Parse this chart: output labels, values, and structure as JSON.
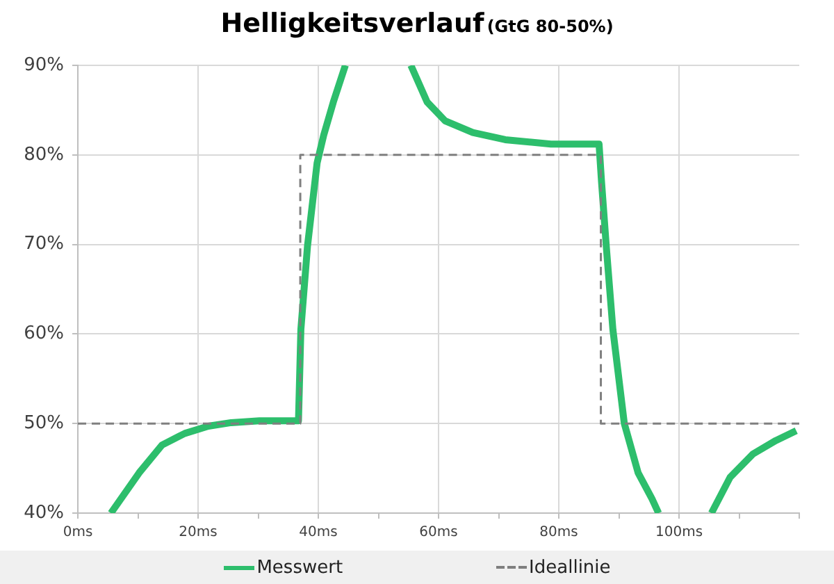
{
  "chart_data": {
    "type": "line",
    "title": "Helligkeitsverlauf",
    "subtitle": "(GtG 80-50%)",
    "series": [
      {
        "name": "Messwert",
        "color": "#2dbe6c",
        "line_style": "solid",
        "x": [
          5.5,
          10.2,
          14,
          17.8,
          21.7,
          25.5,
          30.2,
          36.7,
          37.1,
          38.2,
          39.8,
          40.9,
          42.5,
          44.5,
          50,
          55.4,
          58.1,
          61.1,
          65.7,
          71.1,
          78.7,
          86.7,
          87.1,
          87.9,
          89.0,
          90.9,
          93.2,
          95.5,
          96.6,
          101,
          105.4,
          108.5,
          112.3,
          116.1,
          119.5
        ],
        "values": [
          40,
          44.5,
          47.6,
          48.9,
          49.7,
          50.1,
          50.3,
          50.3,
          60.5,
          69.8,
          79.1,
          82.2,
          85.9,
          90,
          null,
          90,
          85.9,
          83.8,
          82.5,
          81.7,
          81.2,
          81.2,
          77.1,
          69.8,
          60.5,
          50,
          44.5,
          41.6,
          40,
          null,
          40,
          44,
          46.6,
          48.1,
          49.2
        ]
      },
      {
        "name": "Ideallinie",
        "color": "#7f7f7f",
        "line_style": "dashed",
        "x": [
          0,
          37,
          37,
          87,
          87,
          120
        ],
        "values": [
          50,
          50,
          80,
          80,
          50,
          50
        ]
      }
    ],
    "xlim": [
      0,
      120
    ],
    "xticks": [
      {
        "value": 0,
        "label": "0ms"
      },
      {
        "value": 10,
        "label": null
      },
      {
        "value": 20,
        "label": "20ms"
      },
      {
        "value": 30,
        "label": null
      },
      {
        "value": 40,
        "label": "40ms"
      },
      {
        "value": 50,
        "label": null
      },
      {
        "value": 60,
        "label": "60ms"
      },
      {
        "value": 70,
        "label": null
      },
      {
        "value": 80,
        "label": "80ms"
      },
      {
        "value": 90,
        "label": null
      },
      {
        "value": 100,
        "label": "100ms"
      },
      {
        "value": 110,
        "label": null
      },
      {
        "value": 120,
        "label": null
      }
    ],
    "ylim": [
      40,
      90
    ],
    "yticks": [
      {
        "value": 40,
        "label": "40%"
      },
      {
        "value": 50,
        "label": "50%"
      },
      {
        "value": 60,
        "label": "60%"
      },
      {
        "value": 70,
        "label": "70%"
      },
      {
        "value": 80,
        "label": "80%"
      },
      {
        "value": 90,
        "label": "90%"
      }
    ],
    "grid": true,
    "legend": "bottom",
    "marker": "none"
  }
}
